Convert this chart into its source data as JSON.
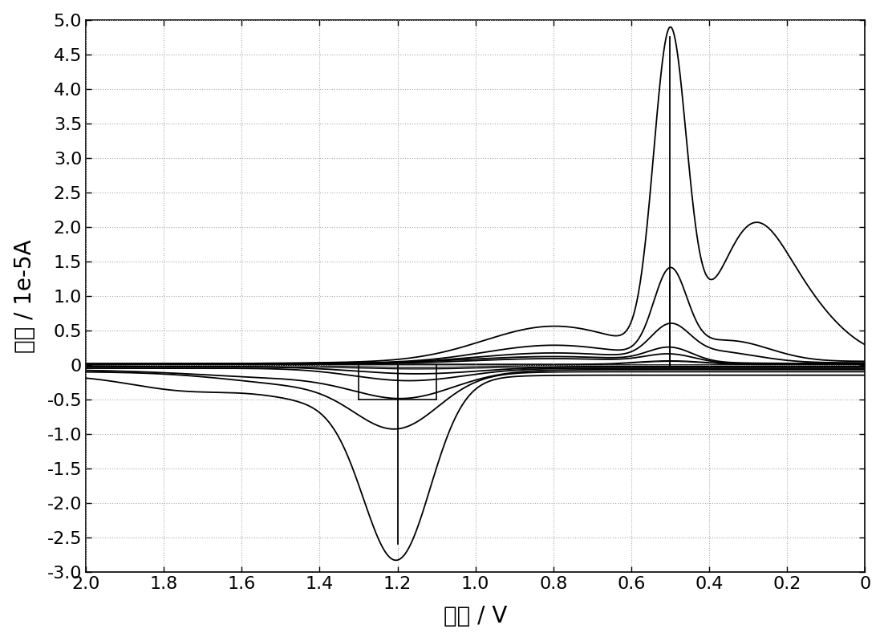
{
  "xlabel": "电位 / V",
  "ylabel": "电流 / 1e-5A",
  "xlim": [
    2.0,
    0.0
  ],
  "ylim": [
    -3.0,
    5.0
  ],
  "xticks": [
    2.0,
    1.8,
    1.6,
    1.4,
    1.2,
    1.0,
    0.8,
    0.6,
    0.4,
    0.2,
    0.0
  ],
  "yticks": [
    -3.0,
    -2.5,
    -2.0,
    -1.5,
    -1.0,
    -0.5,
    0.0,
    0.5,
    1.0,
    1.5,
    2.0,
    2.5,
    3.0,
    3.5,
    4.0,
    4.5,
    5.0
  ],
  "ytick_labels": [
    "-3.0",
    "-2.5",
    "-2.0",
    "-1.5",
    "-1.0",
    "-0.5",
    "0",
    "0.5",
    "1.0",
    "1.5",
    "2.0",
    "2.5",
    "3.0",
    "3.5",
    "4.0",
    "4.5",
    "5.0"
  ],
  "xtick_labels": [
    "2.0",
    "1.8",
    "1.6",
    "1.4",
    "1.2",
    "1.0",
    "0.8",
    "0.6",
    "0.4",
    "0.2",
    "0"
  ],
  "background_color": "#ffffff",
  "line_color": "#000000",
  "grid_color": "#aaaaaa",
  "font_size_label": 20,
  "font_size_tick": 16
}
